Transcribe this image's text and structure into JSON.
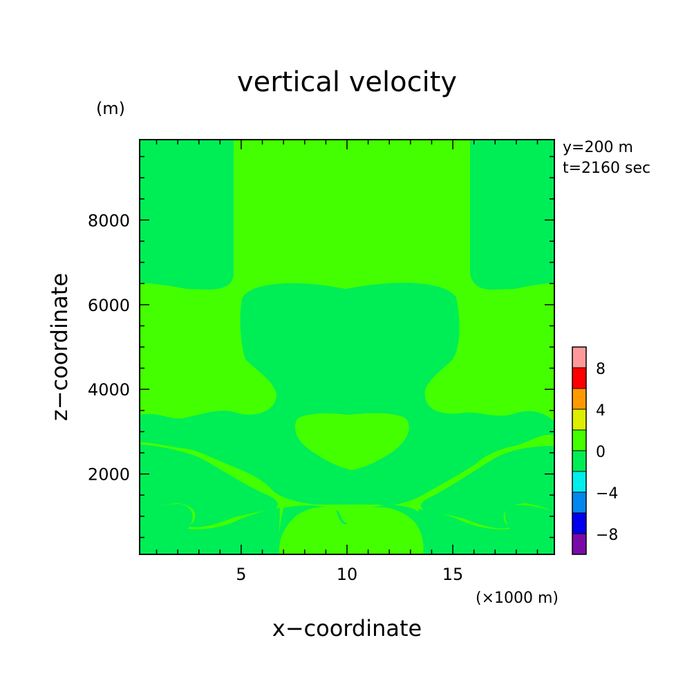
{
  "chart_data": {
    "type": "heatmap",
    "title": "vertical velocity",
    "xlabel": "x−coordinate",
    "ylabel": "z−coordinate",
    "x_unit": "(×1000 m)",
    "y_unit": "(m)",
    "info": [
      "y=200 m",
      "t=2160 sec"
    ],
    "xlim": [
      0.2,
      19.8
    ],
    "ylim": [
      100,
      9900
    ],
    "x_ticks": [
      5,
      10,
      15
    ],
    "y_ticks": [
      2000,
      4000,
      6000,
      8000
    ],
    "x_minor_step": 1,
    "y_minor_step": 500,
    "grid": false,
    "background_level": "0 to 2",
    "dominant_color": "#44ff00",
    "colorbar": {
      "placement": "right-bottom",
      "levels": [
        {
          "range": [
            -10,
            -8
          ],
          "color": "#7a0aa8"
        },
        {
          "range": [
            -8,
            -6
          ],
          "color": "#0000ee"
        },
        {
          "range": [
            -6,
            -4
          ],
          "color": "#0088ee"
        },
        {
          "range": [
            -4,
            -2
          ],
          "color": "#00eeee"
        },
        {
          "range": [
            -2,
            0
          ],
          "color": "#00ee55"
        },
        {
          "range": [
            0,
            2
          ],
          "color": "#44ff00"
        },
        {
          "range": [
            2,
            4
          ],
          "color": "#ddee00"
        },
        {
          "range": [
            4,
            6
          ],
          "color": "#ff9900"
        },
        {
          "range": [
            6,
            8
          ],
          "color": "#ff0000"
        },
        {
          "range": [
            8,
            10
          ],
          "color": "#ff9999"
        }
      ],
      "tick_labels": [
        "8",
        "4",
        "0",
        "−4",
        "−8"
      ],
      "tick_values": [
        8,
        4,
        0,
        -4,
        -8
      ]
    },
    "regions_negative": [
      {
        "name": "upper-left-column",
        "level": "-2 to 0",
        "x": [
          0.2,
          4.7
        ],
        "z": [
          6400,
          9900
        ]
      },
      {
        "name": "upper-right-column",
        "level": "-2 to 0",
        "x": [
          15.9,
          19.8
        ],
        "z": [
          6400,
          9900
        ]
      },
      {
        "name": "central-band",
        "level": "-2 to 0",
        "x": [
          0.2,
          19.8
        ],
        "z": [
          2100,
          6600
        ]
      },
      {
        "name": "lower-left-lobe",
        "level": "-2 to 0",
        "x": [
          0.2,
          6.8
        ],
        "z": [
          700,
          2000
        ]
      },
      {
        "name": "lower-right-lobe",
        "level": "-2 to 0",
        "x": [
          13.5,
          19.8
        ],
        "z": [
          700,
          2000
        ]
      },
      {
        "name": "bottom-band",
        "level": "-2 to 0",
        "x": [
          0.2,
          19.8
        ],
        "z": [
          100,
          800
        ]
      }
    ],
    "regions_positive_inside": [
      {
        "name": "central-blob",
        "level": "0 to 2",
        "x": [
          7.7,
          13.4
        ],
        "z": [
          2100,
          3400
        ]
      },
      {
        "name": "bottom-central-mound",
        "level": "0 to 2",
        "x": [
          6.8,
          13.6
        ],
        "z": [
          100,
          1200
        ]
      }
    ]
  }
}
